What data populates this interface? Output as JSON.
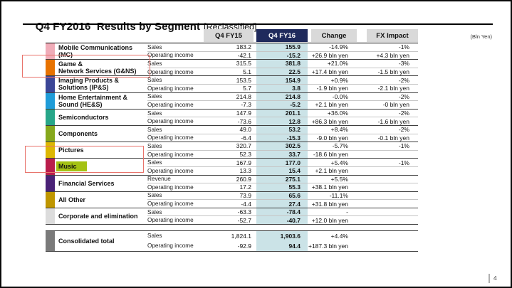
{
  "slide": {
    "title": "Q4 FY2016  Results by Segment",
    "title_suffix": "[Reclassified]",
    "unit_note": "(Bln Yen)",
    "page_number": "4"
  },
  "table": {
    "columns": [
      "Q4 FY15",
      "Q4 FY16",
      "Change",
      "FX Impact"
    ],
    "rows": [
      {
        "segment": "Mobile Communications\n(MC)",
        "color": "#f0acb8",
        "metrics": [
          {
            "label": "Sales",
            "fy15": "183.2",
            "fy16": "155.9",
            "change": "-14.9%",
            "fx": "-1%"
          },
          {
            "label": "Operating income",
            "fy15": "-42.1",
            "fy16": "-15.2",
            "change": "+26.9 bln yen",
            "fx": "+4.3 bln yen"
          }
        ]
      },
      {
        "segment": "Game &\nNetwork Services (G&NS)",
        "color": "#e77200",
        "metrics": [
          {
            "label": "Sales",
            "fy15": "315.5",
            "fy16": "381.8",
            "change": "+21.0%",
            "fx": "-3%"
          },
          {
            "label": "Operating income",
            "fy15": "5.1",
            "fy16": "22.5",
            "change": "+17.4 bln yen",
            "fx": "-1.5 bln yen"
          }
        ]
      },
      {
        "segment": "Imaging Products &\nSolutions (IP&S)",
        "color": "#3b4697",
        "metrics": [
          {
            "label": "Sales",
            "fy15": "153.5",
            "fy16": "154.9",
            "change": "+0.9%",
            "fx": "-2%"
          },
          {
            "label": "Operating income",
            "fy15": "5.7",
            "fy16": "3.8",
            "change": "-1.9 bln yen",
            "fx": "-2.1 bln yen"
          }
        ]
      },
      {
        "segment": "Home Entertainment &\nSound (HE&S)",
        "color": "#1f9cd8",
        "metrics": [
          {
            "label": "Sales",
            "fy15": "214.8",
            "fy16": "214.8",
            "change": "-0.0%",
            "fx": "-2%"
          },
          {
            "label": "Operating income",
            "fy15": "-7.3",
            "fy16": "-5.2",
            "change": "+2.1 bln yen",
            "fx": "-0 bln yen"
          }
        ]
      },
      {
        "segment": "Semiconductors",
        "color": "#27a689",
        "metrics": [
          {
            "label": "Sales",
            "fy15": "147.9",
            "fy16": "201.1",
            "change": "+36.0%",
            "fx": "-2%"
          },
          {
            "label": "Operating income",
            "fy15": "-73.6",
            "fy16": "12.8",
            "change": "+86.3 bln yen",
            "fx": "-1.6 bln yen"
          }
        ]
      },
      {
        "segment": "Components",
        "color": "#86a81c",
        "metrics": [
          {
            "label": "Sales",
            "fy15": "49.0",
            "fy16": "53.2",
            "change": "+8.4%",
            "fx": "-2%"
          },
          {
            "label": "Operating income",
            "fy15": "-6.4",
            "fy16": "-15.3",
            "change": "-9.0 bln yen",
            "fx": "-0.1 bln yen"
          }
        ]
      },
      {
        "segment": "Pictures",
        "color": "#ddb702",
        "metrics": [
          {
            "label": "Sales",
            "fy15": "320.7",
            "fy16": "302.5",
            "change": "-5.7%",
            "fx": "-1%"
          },
          {
            "label": "Operating income",
            "fy15": "52.3",
            "fy16": "33.7",
            "change": "-18.6 bln yen",
            "fx": ""
          }
        ]
      },
      {
        "segment": "Music",
        "color": "#b91d4b",
        "name_highlight": "#a4c213",
        "metrics": [
          {
            "label": "Sales",
            "fy15": "167.9",
            "fy16": "177.0",
            "change": "+5.4%",
            "fx": "-1%"
          },
          {
            "label": "Operating income",
            "fy15": "13.3",
            "fy16": "15.4",
            "change": "+2.1 bln yen",
            "fx": ""
          }
        ]
      },
      {
        "segment": "Financial Services",
        "color": "#4a2277",
        "metrics": [
          {
            "label": "Revenue",
            "fy15": "260.9",
            "fy16": "275.1",
            "change": "+5.5%",
            "fx": ""
          },
          {
            "label": "Operating income",
            "fy15": "17.2",
            "fy16": "55.3",
            "change": "+38.1 bln yen",
            "fx": ""
          }
        ]
      },
      {
        "segment": "All Other",
        "color": "#bf9600",
        "metrics": [
          {
            "label": "Sales",
            "fy15": "73.9",
            "fy16": "65.6",
            "change": "-11.1%",
            "fx": ""
          },
          {
            "label": "Operating income",
            "fy15": "-4.4",
            "fy16": "27.4",
            "change": "+31.8 bln yen",
            "fx": ""
          }
        ]
      },
      {
        "segment": "Corporate and elimination",
        "color": "#dcdcdc",
        "metrics": [
          {
            "label": "Sales",
            "fy15": "-63.3",
            "fy16": "-78.4",
            "change": "-",
            "fx": ""
          },
          {
            "label": "Operating income",
            "fy15": "-52.7",
            "fy16": "-40.7",
            "change": "+12.0 bln yen",
            "fx": ""
          }
        ]
      }
    ],
    "total": {
      "segment": "Consolidated total",
      "color": "#7a7a7a",
      "metrics": [
        {
          "label": "Sales",
          "fy15": "1,824.1",
          "fy16": "1,903.6",
          "change": "+4.4%",
          "fx": ""
        },
        {
          "label": "Operating income",
          "fy15": "-92.9",
          "fy16": "94.4",
          "change": "+187.3 bln yen",
          "fx": ""
        }
      ]
    }
  },
  "annotations": [
    {
      "target": "Game & Network Services (G&NS)",
      "color": "#e8736b"
    },
    {
      "target": "Pictures and Music",
      "color": "#e8736b"
    }
  ],
  "colors": {
    "fy16_header_bg": "#1f2a5c",
    "fy16_column_bg": "#cbe3e7",
    "header_bg": "#d9d9d9",
    "annotation_red": "#e8736b",
    "music_highlight": "#a4c213"
  }
}
